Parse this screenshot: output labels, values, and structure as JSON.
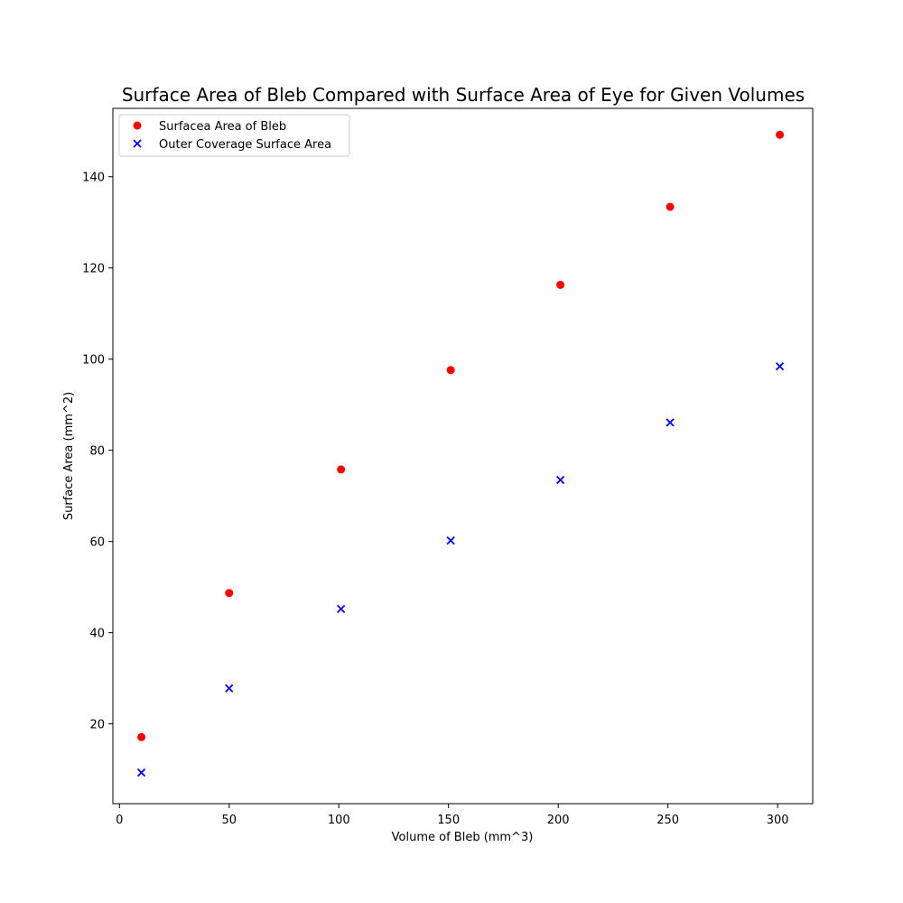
{
  "chart_data": {
    "type": "scatter",
    "title": "Surface Area of Bleb Compared with Surface Area of Eye for Given Volumes",
    "xlabel": "Volume of Bleb (mm^3)",
    "ylabel": "Surface Area (mm^2)",
    "xlim": [
      -3,
      316
    ],
    "ylim": [
      2.5,
      155
    ],
    "xticks": [
      0,
      50,
      100,
      150,
      200,
      250,
      300
    ],
    "yticks": [
      20,
      40,
      60,
      80,
      100,
      120,
      140
    ],
    "grid": false,
    "legend_position": "top-left",
    "series": [
      {
        "name": "Surfacea Area of Bleb",
        "marker": "circle",
        "color": "#ff0000",
        "x": [
          10,
          50,
          101,
          151,
          201,
          251,
          301
        ],
        "y": [
          17.1,
          48.7,
          75.8,
          97.6,
          116.3,
          133.4,
          149.2
        ]
      },
      {
        "name": "Outer Coverage Surface Area",
        "marker": "x",
        "color": "#0000ff",
        "x": [
          10,
          50,
          101,
          151,
          201,
          251,
          301
        ],
        "y": [
          9.3,
          27.8,
          45.2,
          60.2,
          73.5,
          86.1,
          98.4
        ]
      }
    ]
  }
}
